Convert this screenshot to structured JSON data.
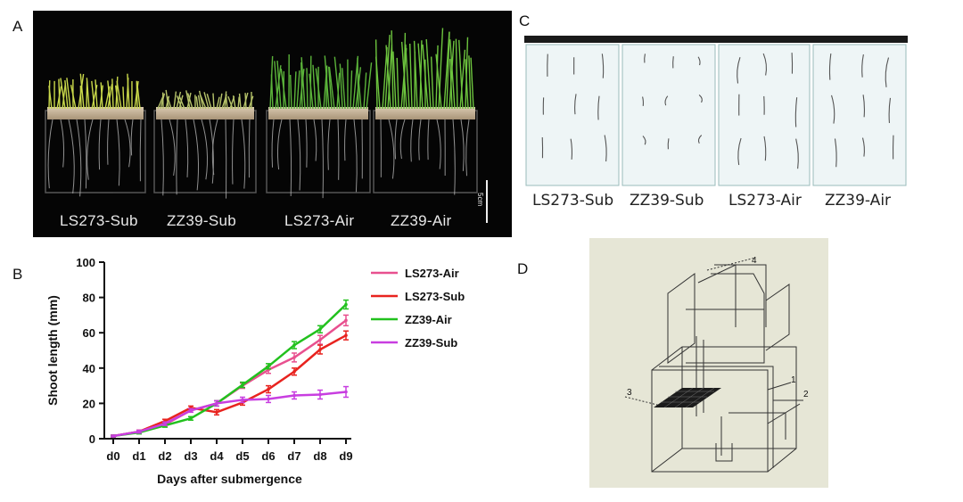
{
  "panels": {
    "a": {
      "letter": "A",
      "labels": [
        "LS273-Sub",
        "ZZ39-Sub",
        "LS273-Air",
        "ZZ39-Air"
      ],
      "scale_label": "5cm"
    },
    "b": {
      "letter": "B"
    },
    "c": {
      "letter": "C",
      "labels": [
        "LS273-Sub",
        "ZZ39-Sub",
        "LS273-Air",
        "ZZ39-Air"
      ]
    },
    "d": {
      "letter": "D",
      "callouts": [
        "4",
        "1",
        "2",
        "3"
      ]
    }
  },
  "colors": {
    "LS273-Air": "#e8508f",
    "LS273-Sub": "#e8231f",
    "ZZ39-Air": "#22c11e",
    "ZZ39-Sub": "#c83ee0"
  },
  "chart_data": {
    "type": "line",
    "title": "",
    "xlabel": "Days after submergence",
    "ylabel": "Shoot  length (mm)",
    "categories": [
      "d0",
      "d1",
      "d2",
      "d3",
      "d4",
      "d5",
      "d6",
      "d7",
      "d8",
      "d9"
    ],
    "ylim": [
      0,
      100
    ],
    "yticks": [
      0,
      20,
      40,
      60,
      80,
      100
    ],
    "legend_position": "top-right",
    "series": [
      {
        "name": "LS273-Air",
        "values": [
          1.5,
          4,
          8,
          16,
          20,
          30,
          39,
          46,
          56,
          67
        ],
        "error": [
          0.5,
          0.8,
          1,
          1,
          1.5,
          1.5,
          2,
          2.5,
          2.5,
          3
        ]
      },
      {
        "name": "LS273-Sub",
        "values": [
          1.5,
          4,
          10,
          17.5,
          15,
          20.5,
          28,
          38,
          50.5,
          58.5
        ],
        "error": [
          0.5,
          0.8,
          1,
          1,
          1.5,
          1.5,
          2,
          2,
          2.5,
          2.5
        ]
      },
      {
        "name": "ZZ39-Air",
        "values": [
          1.5,
          3.5,
          7.5,
          11.5,
          20,
          30.5,
          41,
          53,
          62,
          76
        ],
        "error": [
          0.5,
          0.8,
          1,
          1,
          1.5,
          1.5,
          1.5,
          2,
          2,
          2.5
        ]
      },
      {
        "name": "ZZ39-Sub",
        "values": [
          1.5,
          4,
          8.5,
          16,
          20,
          22,
          22.5,
          24.5,
          25,
          26.5
        ],
        "error": [
          0.5,
          0.8,
          1,
          1,
          1.5,
          1.5,
          2,
          2,
          2.5,
          3
        ]
      }
    ]
  }
}
